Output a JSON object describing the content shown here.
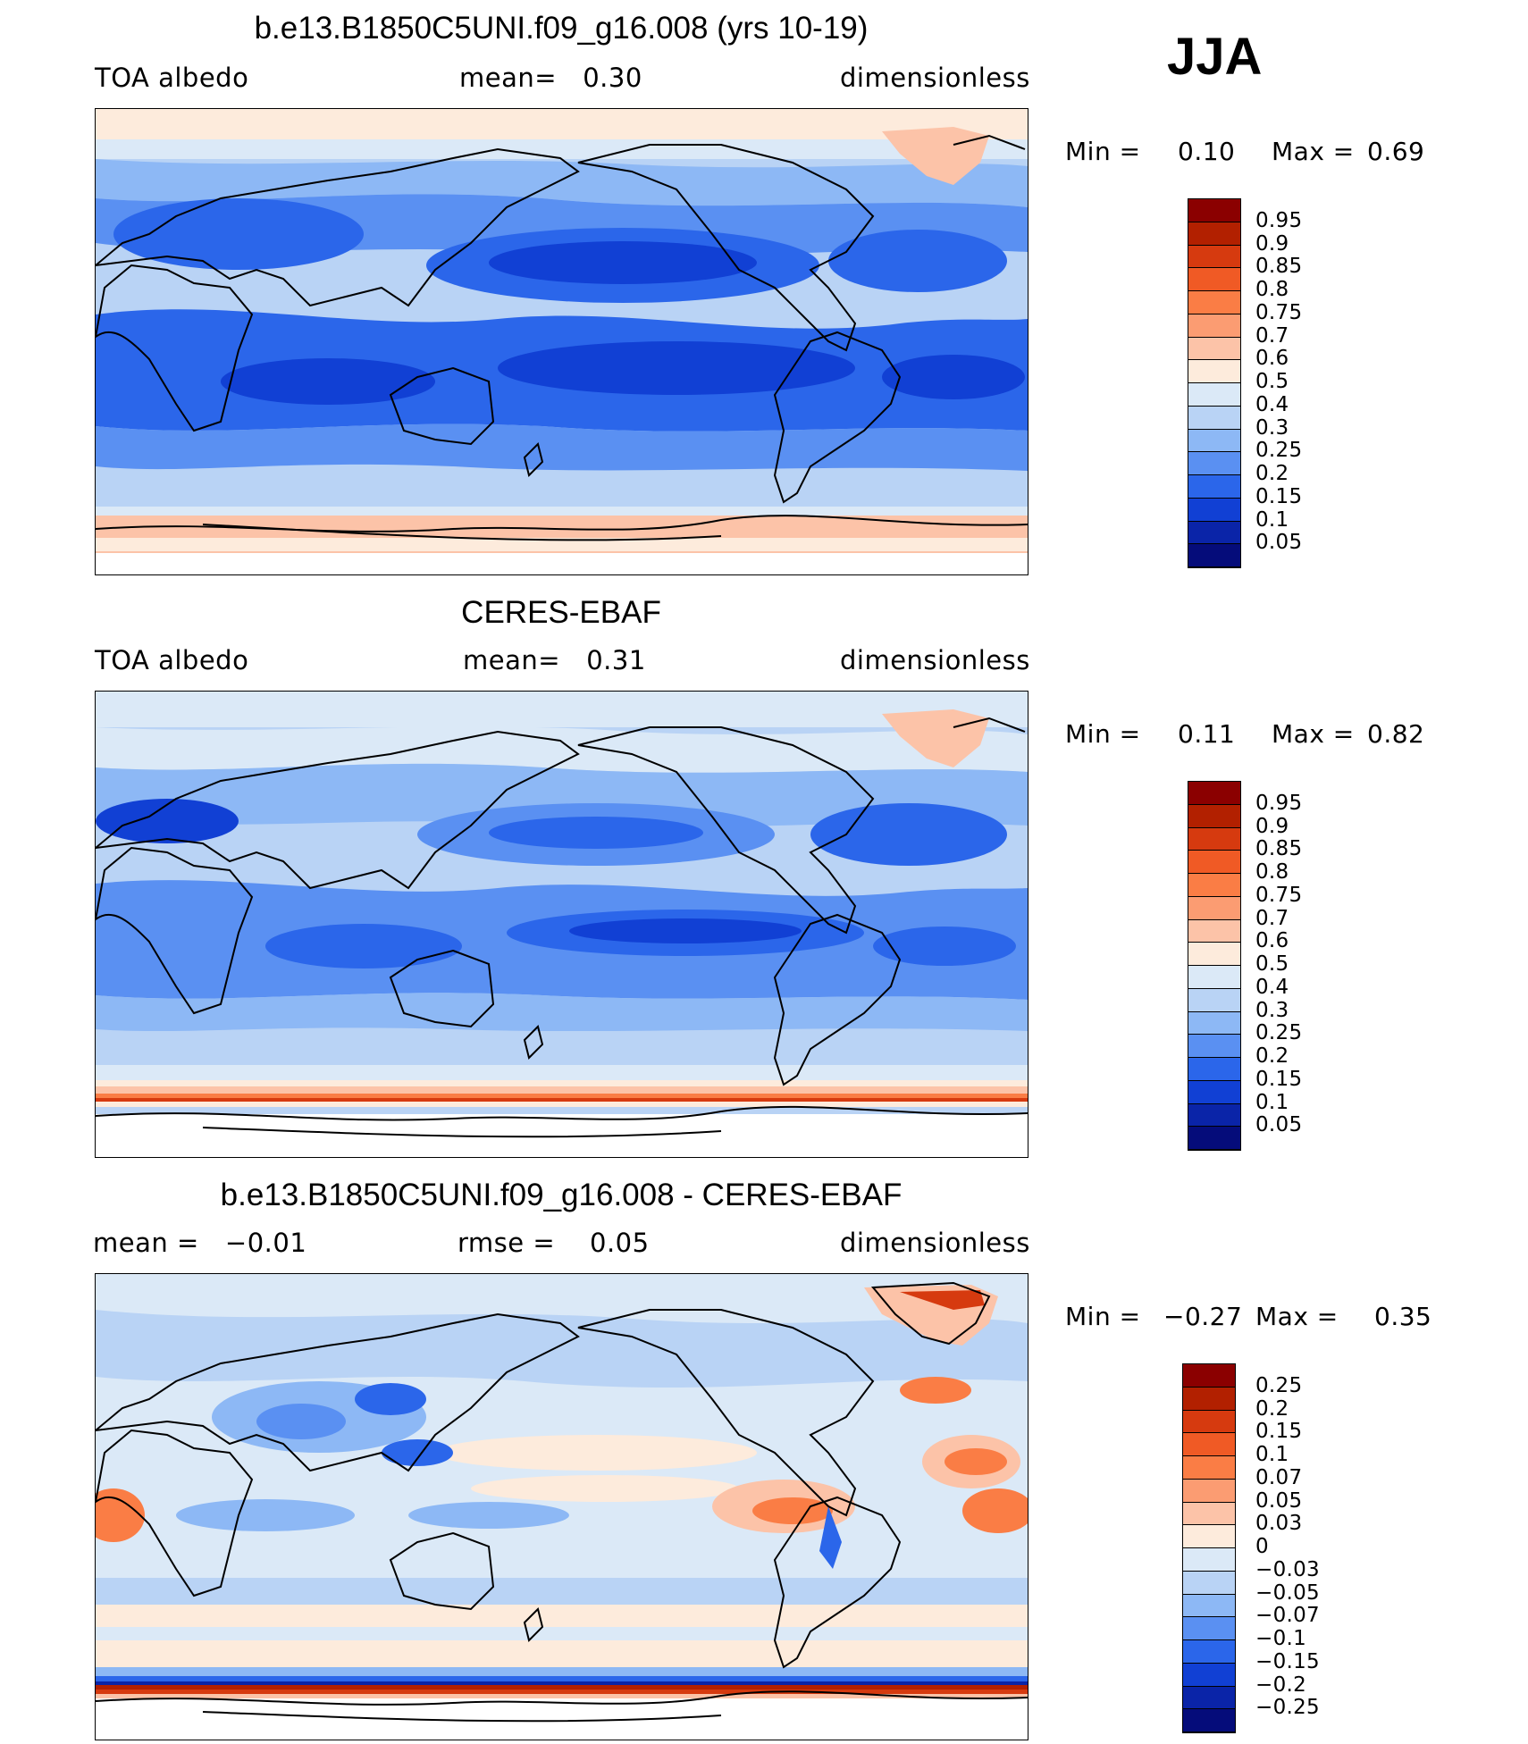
{
  "season": "JJA",
  "panels": [
    {
      "title": "b.e13.B1850C5UNI.f09_g16.008 (yrs 10-19)",
      "left_label": "TOA albedo",
      "center_label": "mean=   0.30",
      "right_label": "dimensionless",
      "min_label": "Min =",
      "min_value": "0.10",
      "max_label": "Max =",
      "max_value": "0.69",
      "colorbar_labels": [
        "0.95",
        "0.9",
        "0.85",
        "0.8",
        "0.75",
        "0.7",
        "0.6",
        "0.5",
        "0.4",
        "0.3",
        "0.25",
        "0.2",
        "0.15",
        "0.1",
        "0.05"
      ],
      "colorbar_colors": [
        "#8b0000",
        "#b22000",
        "#d63a0f",
        "#f05a25",
        "#fa7d45",
        "#fb9c72",
        "#fcc3a8",
        "#fdebdc",
        "#dbe9f7",
        "#b9d3f5",
        "#8db8f5",
        "#5a90f2",
        "#2b66ea",
        "#1140d4",
        "#0a24a8",
        "#050c7a"
      ]
    },
    {
      "title": "CERES-EBAF",
      "left_label": "TOA albedo",
      "center_label": "mean=   0.31",
      "right_label": "dimensionless",
      "min_label": "Min =",
      "min_value": "0.11",
      "max_label": "Max =",
      "max_value": "0.82",
      "colorbar_labels": [
        "0.95",
        "0.9",
        "0.85",
        "0.8",
        "0.75",
        "0.7",
        "0.6",
        "0.5",
        "0.4",
        "0.3",
        "0.25",
        "0.2",
        "0.15",
        "0.1",
        "0.05"
      ],
      "colorbar_colors": [
        "#8b0000",
        "#b22000",
        "#d63a0f",
        "#f05a25",
        "#fa7d45",
        "#fb9c72",
        "#fcc3a8",
        "#fdebdc",
        "#dbe9f7",
        "#b9d3f5",
        "#8db8f5",
        "#5a90f2",
        "#2b66ea",
        "#1140d4",
        "#0a24a8",
        "#050c7a"
      ]
    },
    {
      "title": "b.e13.B1850C5UNI.f09_g16.008 - CERES-EBAF",
      "left_label": "mean =   −0.01",
      "center_label": "rmse =    0.05",
      "right_label": "dimensionless",
      "min_label": "Min =",
      "min_value": "−0.27",
      "max_label": "Max =",
      "max_value": "0.35",
      "colorbar_labels": [
        "0.25",
        "0.2",
        "0.15",
        "0.1",
        "0.07",
        "0.05",
        "0.03",
        "0",
        "−0.03",
        "−0.05",
        "−0.07",
        "−0.1",
        "−0.15",
        "−0.2",
        "−0.25"
      ],
      "colorbar_colors": [
        "#8b0000",
        "#b22000",
        "#d63a0f",
        "#f05a25",
        "#fa7d45",
        "#fb9c72",
        "#fcc3a8",
        "#fdebdc",
        "#dbe9f7",
        "#b9d3f5",
        "#8db8f5",
        "#5a90f2",
        "#2b66ea",
        "#1140d4",
        "#0a24a8",
        "#050c7a"
      ]
    }
  ]
}
